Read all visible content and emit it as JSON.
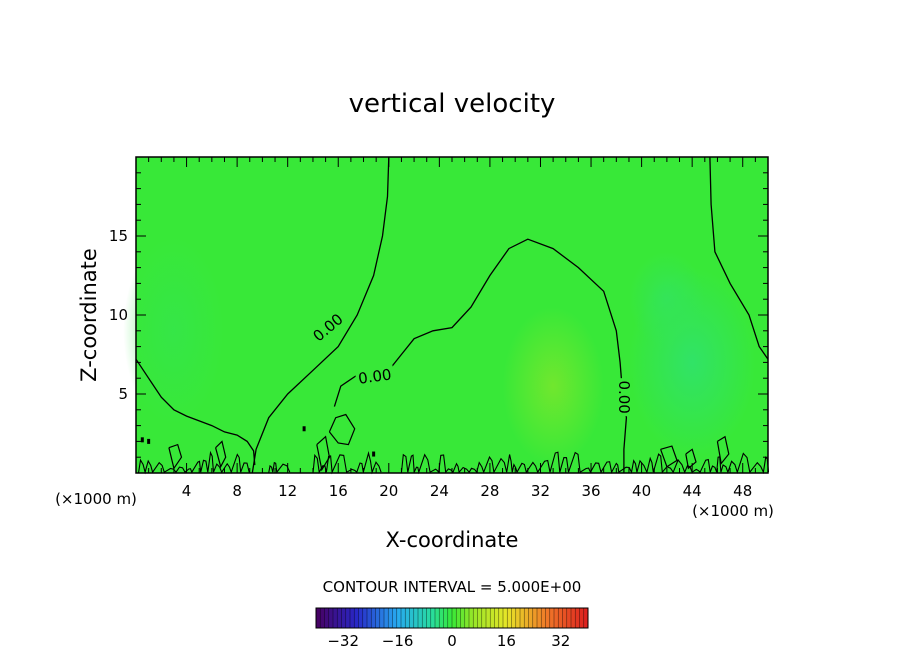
{
  "chart_data": {
    "type": "heatmap",
    "title": "vertical velocity",
    "xlabel": "X-coordinate",
    "ylabel": "Z-coordinate",
    "x_unit_left": "(×1000 m)",
    "x_unit_right": "(×1000 m)",
    "xlim": [
      0,
      50
    ],
    "ylim": [
      0,
      20
    ],
    "x_ticks": [
      4,
      8,
      12,
      16,
      20,
      24,
      28,
      32,
      36,
      40,
      44,
      48
    ],
    "y_ticks": [
      5,
      10,
      15
    ],
    "contour_interval_text": "CONTOUR INTERVAL = 5.000E+00",
    "contour_level_label": "0.00",
    "colorbar": {
      "min": -40,
      "max": 40,
      "ticks": [
        -32,
        -16,
        0,
        16,
        32
      ],
      "tick_labels": [
        "−32",
        "−16",
        "0",
        "16",
        "32"
      ]
    },
    "background_value": 0,
    "field_blobs": [
      {
        "x": 33,
        "z": 5.5,
        "value": 4,
        "rx": 4,
        "rz": 5
      },
      {
        "x": 44,
        "z": 7,
        "value": -3,
        "rx": 5,
        "rz": 6
      },
      {
        "x": 42,
        "z": 11,
        "value": -2,
        "rx": 3,
        "rz": 3
      },
      {
        "x": 3,
        "z": 9,
        "value": -1,
        "rx": 4,
        "rz": 6
      }
    ],
    "zero_contours": [
      [
        [
          0,
          7.2
        ],
        [
          1,
          6.0
        ],
        [
          2,
          4.8
        ],
        [
          3,
          4.0
        ],
        [
          4,
          3.6
        ],
        [
          5,
          3.3
        ],
        [
          6,
          3.0
        ],
        [
          7,
          2.6
        ],
        [
          8,
          2.4
        ],
        [
          8.8,
          2.0
        ],
        [
          9.3,
          1.4
        ],
        [
          9.4,
          0.5
        ]
      ],
      [
        [
          9.2,
          0.0
        ],
        [
          9.5,
          1.5
        ],
        [
          10.5,
          3.5
        ],
        [
          12,
          5
        ],
        [
          14,
          6.5
        ],
        [
          16,
          8
        ],
        [
          17.5,
          10
        ],
        [
          18.8,
          12.5
        ],
        [
          19.5,
          15
        ],
        [
          19.9,
          17.5
        ],
        [
          20,
          20
        ]
      ],
      [
        [
          15.7,
          4.2
        ],
        [
          16.2,
          5.5
        ],
        [
          17.5,
          6.2
        ],
        [
          19,
          6.0
        ],
        [
          20,
          6.5
        ],
        [
          21,
          7.5
        ],
        [
          22,
          8.5
        ],
        [
          23.5,
          9.0
        ],
        [
          25,
          9.2
        ],
        [
          26.5,
          10.5
        ],
        [
          28,
          12.5
        ],
        [
          29.5,
          14.2
        ],
        [
          31,
          14.8
        ],
        [
          33,
          14.2
        ],
        [
          35,
          13.0
        ],
        [
          37,
          11.5
        ],
        [
          38,
          9.0
        ],
        [
          38.3,
          7.0
        ],
        [
          38.5,
          5.0
        ],
        [
          38.8,
          3.5
        ],
        [
          38.6,
          1.5
        ],
        [
          38.6,
          0.0
        ]
      ],
      [
        [
          45.4,
          20
        ],
        [
          45.5,
          17
        ],
        [
          45.8,
          14
        ],
        [
          47,
          12
        ],
        [
          48.5,
          10
        ],
        [
          49.3,
          8.0
        ],
        [
          50,
          7.2
        ]
      ]
    ],
    "small_contours": [
      [
        [
          15.3,
          2.6
        ],
        [
          15.8,
          3.5
        ],
        [
          16.6,
          3.7
        ],
        [
          17.3,
          2.8
        ],
        [
          16.8,
          1.8
        ],
        [
          16.0,
          1.9
        ],
        [
          15.3,
          2.6
        ]
      ],
      [
        [
          14.3,
          1.8
        ],
        [
          15.0,
          2.3
        ],
        [
          15.3,
          1.0
        ],
        [
          14.7,
          0.2
        ],
        [
          14.3,
          1.8
        ]
      ],
      [
        [
          2.6,
          1.6
        ],
        [
          3.3,
          1.8
        ],
        [
          3.6,
          1.0
        ],
        [
          3.0,
          0.3
        ],
        [
          2.6,
          1.6
        ]
      ],
      [
        [
          6.3,
          1.6
        ],
        [
          6.8,
          2.0
        ],
        [
          7.1,
          1.0
        ],
        [
          6.7,
          0.4
        ],
        [
          6.3,
          1.6
        ]
      ],
      [
        [
          46.0,
          2.0
        ],
        [
          46.6,
          2.3
        ],
        [
          46.9,
          1.2
        ],
        [
          46.3,
          0.6
        ],
        [
          46.0,
          2.0
        ]
      ],
      [
        [
          41.5,
          1.5
        ],
        [
          42.4,
          1.7
        ],
        [
          42.8,
          0.8
        ],
        [
          42.0,
          0.4
        ],
        [
          41.5,
          1.5
        ]
      ],
      [
        [
          43.5,
          1.2
        ],
        [
          44.0,
          1.5
        ],
        [
          44.3,
          0.7
        ],
        [
          43.7,
          0.3
        ],
        [
          43.5,
          1.2
        ]
      ]
    ]
  }
}
